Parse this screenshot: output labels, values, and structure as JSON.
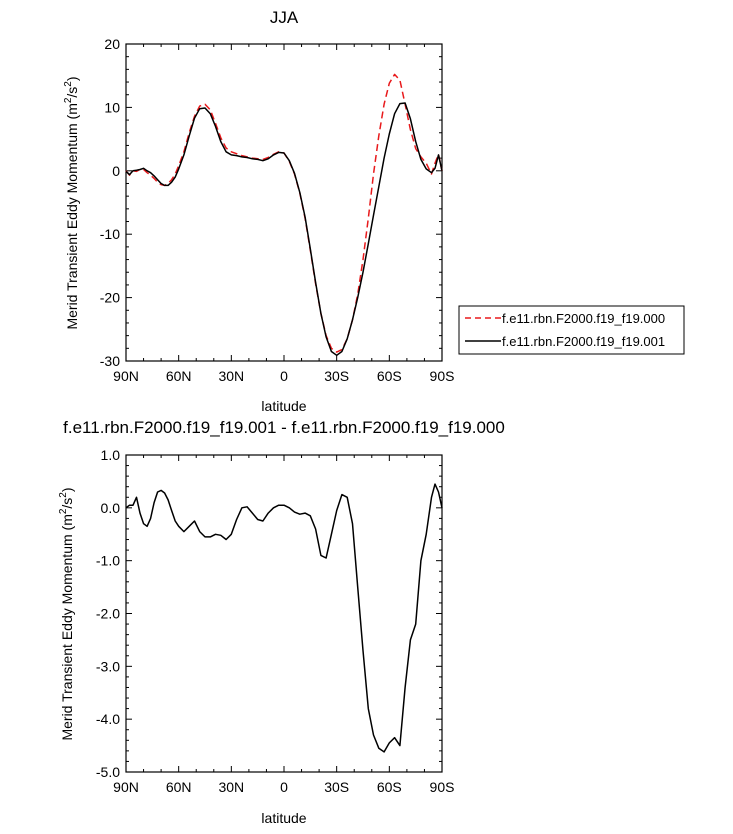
{
  "chart_data": [
    {
      "type": "line",
      "title": "JJA",
      "xlabel": "latitude",
      "ylabel": "Merid Transient Eddy Momentum (m²/s²)",
      "ylabel_main": "Merid Transient Eddy Momentum (m",
      "ylabel_unit_mid": "/s",
      "ylabel_close": ")",
      "ylabel_sup": "2",
      "xlim": [
        -90,
        90
      ],
      "ylim": [
        -30,
        20
      ],
      "x_ticks": [
        {
          "value": -90,
          "label": "90N"
        },
        {
          "value": -60,
          "label": "60N"
        },
        {
          "value": -30,
          "label": "30N"
        },
        {
          "value": 0,
          "label": "0"
        },
        {
          "value": 30,
          "label": "30S"
        },
        {
          "value": 60,
          "label": "60S"
        },
        {
          "value": 90,
          "label": "90S"
        }
      ],
      "y_ticks": [
        {
          "value": 20,
          "label": "20"
        },
        {
          "value": 10,
          "label": "10"
        },
        {
          "value": 0,
          "label": "0"
        },
        {
          "value": -10,
          "label": "-10"
        },
        {
          "value": -20,
          "label": "-20"
        },
        {
          "value": -30,
          "label": "-30"
        }
      ],
      "grid": false,
      "legend_position": "right",
      "series": [
        {
          "name": "f.e11.rbn.F2000.f19_f19.000",
          "color": "#e8191b",
          "dash": "dashed",
          "x": [
            -90,
            -88,
            -86,
            -84,
            -82,
            -80,
            -78,
            -76,
            -74,
            -72,
            -70,
            -68,
            -66,
            -64,
            -62,
            -60,
            -57,
            -54,
            -51,
            -48,
            -45,
            -42,
            -39,
            -36,
            -33,
            -30,
            -27,
            -24,
            -21,
            -18,
            -15,
            -12,
            -9,
            -6,
            -3,
            0,
            3,
            6,
            9,
            12,
            15,
            18,
            21,
            24,
            27,
            30,
            33,
            36,
            39,
            42,
            45,
            48,
            51,
            54,
            57,
            60,
            63,
            66,
            69,
            72,
            75,
            78,
            81,
            84,
            86,
            88,
            90
          ],
          "y": [
            0.0,
            -0.7,
            0.0,
            -0.1,
            0.2,
            0.2,
            -0.3,
            -0.7,
            -1.2,
            -1.8,
            -2.2,
            -2.3,
            -2.0,
            -1.4,
            -0.5,
            0.8,
            3.0,
            6.0,
            8.6,
            10.2,
            10.5,
            9.6,
            7.5,
            5.2,
            3.6,
            3.0,
            2.7,
            2.4,
            2.2,
            2.0,
            1.9,
            1.8,
            2.1,
            2.6,
            3.0,
            2.8,
            1.5,
            -0.5,
            -3.5,
            -7.5,
            -12.5,
            -17.8,
            -22.5,
            -26.0,
            -28.0,
            -28.6,
            -28.2,
            -26.5,
            -23.5,
            -19.5,
            -14.0,
            -7.5,
            -0.5,
            5.5,
            10.5,
            13.8,
            15.2,
            14.3,
            10.5,
            6.5,
            3.5,
            2.2,
            1.2,
            -0.5,
            1.2,
            2.6,
            0.0
          ]
        },
        {
          "name": "f.e11.rbn.F2000.f19_f19.001",
          "color": "#000000",
          "dash": "solid",
          "x": [
            -90,
            -88,
            -86,
            -84,
            -82,
            -80,
            -78,
            -76,
            -74,
            -72,
            -70,
            -68,
            -66,
            -64,
            -62,
            -60,
            -57,
            -54,
            -51,
            -48,
            -45,
            -42,
            -39,
            -36,
            -33,
            -30,
            -27,
            -24,
            -21,
            -18,
            -15,
            -12,
            -9,
            -6,
            -3,
            0,
            3,
            6,
            9,
            12,
            15,
            18,
            21,
            24,
            27,
            30,
            33,
            36,
            39,
            42,
            45,
            48,
            51,
            54,
            57,
            60,
            63,
            66,
            69,
            72,
            75,
            78,
            81,
            84,
            86,
            88,
            90
          ],
          "y": [
            -0.1,
            -0.6,
            0.0,
            0.1,
            0.2,
            0.4,
            0.0,
            -0.3,
            -0.8,
            -1.4,
            -2.0,
            -2.3,
            -2.3,
            -1.8,
            -1.0,
            0.3,
            2.5,
            5.5,
            8.3,
            9.8,
            9.9,
            9.0,
            7.0,
            4.6,
            3.0,
            2.5,
            2.4,
            2.2,
            2.1,
            1.9,
            1.8,
            1.6,
            1.9,
            2.5,
            2.9,
            2.8,
            1.6,
            -0.4,
            -3.4,
            -7.3,
            -12.3,
            -17.6,
            -22.5,
            -26.2,
            -28.5,
            -29.1,
            -28.5,
            -26.5,
            -23.5,
            -20.0,
            -16.0,
            -11.5,
            -7.0,
            -2.5,
            2.0,
            5.8,
            9.0,
            10.6,
            10.7,
            8.2,
            4.6,
            1.8,
            0.3,
            -0.3,
            0.4,
            2.5,
            0.0
          ]
        }
      ]
    },
    {
      "type": "line",
      "title": "f.e11.rbn.F2000.f19_f19.001 - f.e11.rbn.F2000.f19_f19.000",
      "xlabel": "latitude",
      "ylabel": "Merid Transient Eddy Momentum (m²/s²)",
      "ylabel_main": "Merid Transient Eddy Momentum (m",
      "ylabel_unit_mid": "/s",
      "ylabel_close": ")",
      "ylabel_sup": "2",
      "xlim": [
        -90,
        90
      ],
      "ylim": [
        -5.0,
        1.0
      ],
      "x_ticks": [
        {
          "value": -90,
          "label": "90N"
        },
        {
          "value": -60,
          "label": "60N"
        },
        {
          "value": -30,
          "label": "30N"
        },
        {
          "value": 0,
          "label": "0"
        },
        {
          "value": 30,
          "label": "30S"
        },
        {
          "value": 60,
          "label": "60S"
        },
        {
          "value": 90,
          "label": "90S"
        }
      ],
      "y_ticks": [
        {
          "value": 1.0,
          "label": "1.0"
        },
        {
          "value": 0.0,
          "label": "0.0"
        },
        {
          "value": -1.0,
          "label": "-1.0"
        },
        {
          "value": -2.0,
          "label": "-2.0"
        },
        {
          "value": -3.0,
          "label": "-3.0"
        },
        {
          "value": -4.0,
          "label": "-4.0"
        },
        {
          "value": -5.0,
          "label": "-5.0"
        }
      ],
      "grid": false,
      "series": [
        {
          "color": "#000000",
          "dash": "solid",
          "x": [
            -90,
            -88,
            -86,
            -84,
            -82,
            -80,
            -78,
            -76,
            -74,
            -72,
            -70,
            -68,
            -66,
            -64,
            -62,
            -60,
            -57,
            -54,
            -51,
            -48,
            -45,
            -42,
            -39,
            -36,
            -33,
            -30,
            -27,
            -24,
            -21,
            -18,
            -15,
            -12,
            -9,
            -6,
            -3,
            0,
            3,
            6,
            9,
            12,
            15,
            18,
            21,
            24,
            27,
            30,
            33,
            36,
            39,
            42,
            45,
            48,
            51,
            54,
            57,
            60,
            63,
            66,
            69,
            72,
            75,
            78,
            81,
            84,
            86,
            88,
            90
          ],
          "y": [
            0.0,
            0.05,
            0.05,
            0.2,
            -0.1,
            -0.3,
            -0.35,
            -0.2,
            0.1,
            0.3,
            0.33,
            0.28,
            0.15,
            -0.05,
            -0.25,
            -0.35,
            -0.45,
            -0.35,
            -0.25,
            -0.45,
            -0.55,
            -0.55,
            -0.5,
            -0.52,
            -0.6,
            -0.5,
            -0.22,
            0.0,
            0.02,
            -0.1,
            -0.22,
            -0.25,
            -0.1,
            0.0,
            0.05,
            0.05,
            0.0,
            -0.08,
            -0.12,
            -0.1,
            -0.15,
            -0.4,
            -0.9,
            -0.95,
            -0.5,
            -0.05,
            0.25,
            0.2,
            -0.3,
            -1.5,
            -2.7,
            -3.8,
            -4.3,
            -4.55,
            -4.62,
            -4.45,
            -4.35,
            -4.5,
            -3.4,
            -2.5,
            -2.2,
            -1.0,
            -0.5,
            0.2,
            0.45,
            0.3,
            0.0
          ]
        }
      ]
    }
  ]
}
